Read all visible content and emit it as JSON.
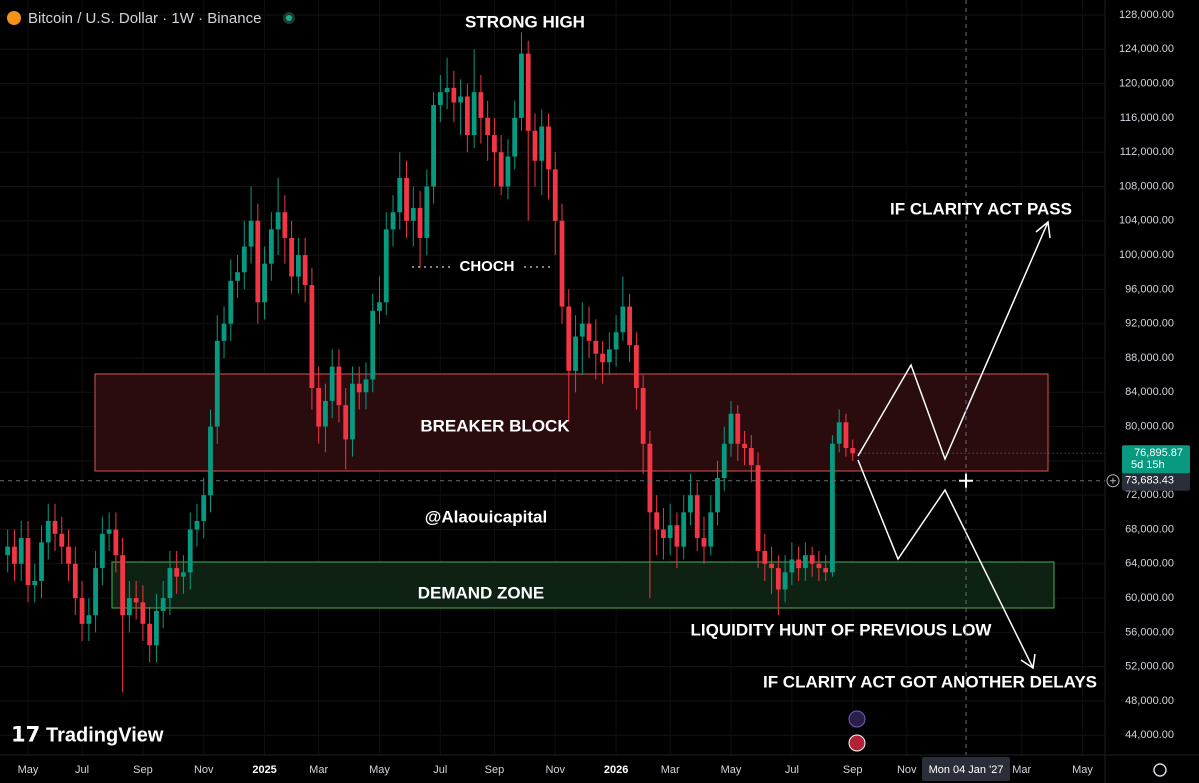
{
  "header": {
    "symbol": "Bitcoin / U.S. Dollar · 1W · Binance"
  },
  "branding": "TradingView",
  "chart_data": {
    "type": "candlestick",
    "categories": [
      null,
      null,
      null,
      "May",
      null,
      null,
      null,
      null,
      null,
      null,
      null,
      "Jul",
      null,
      null,
      null,
      null,
      null,
      null,
      null,
      null,
      "Sep",
      null,
      null,
      null,
      null,
      null,
      null,
      null,
      null,
      "Nov",
      null,
      null,
      null,
      null,
      null,
      null,
      null,
      null,
      "2025",
      null,
      null,
      null,
      null,
      null,
      null,
      null,
      "Mar",
      null,
      null,
      null,
      null,
      null,
      null,
      null,
      null,
      "May",
      null,
      null,
      null,
      null,
      null,
      null,
      null,
      null,
      "Jul",
      null,
      null,
      null,
      null,
      null,
      null,
      null,
      "Sep",
      null,
      null,
      null,
      null,
      null,
      null,
      null,
      null,
      "Nov",
      null,
      null,
      null,
      null,
      null,
      null,
      null,
      null,
      "2026",
      null,
      null,
      null,
      null,
      null,
      null,
      null,
      "Mar",
      null,
      null,
      null,
      null,
      null,
      null,
      null,
      null,
      "May",
      null,
      null,
      null,
      null,
      null,
      null,
      null,
      null,
      "Jul",
      null,
      null,
      null,
      null,
      null,
      null,
      null,
      null,
      "Sep",
      null,
      null,
      null,
      null,
      null,
      null,
      null,
      "Nov",
      null,
      null,
      null,
      null,
      null,
      null,
      null,
      null,
      null,
      null,
      null,
      null,
      null,
      null,
      null,
      null,
      "Mar",
      null,
      null,
      null,
      null,
      null,
      null,
      null,
      null,
      "May"
    ],
    "open": [
      65000,
      66000,
      64000,
      67000,
      61500,
      62000,
      66500,
      69000,
      67500,
      66000,
      64000,
      60000,
      57000,
      58000,
      63500,
      67500,
      68000,
      65000,
      58000,
      60000,
      59500,
      57000,
      54500,
      58500,
      60000,
      63500,
      62500,
      63000,
      68000,
      69000,
      72000,
      80000,
      90000,
      92000,
      97000,
      98000,
      101000,
      104000,
      94500,
      99000,
      103000,
      105000,
      102000,
      97500,
      100000,
      96500,
      84500,
      80000,
      83000,
      87000,
      82500,
      78500,
      85000,
      84000,
      85500,
      93500,
      94500,
      103000,
      105000,
      109000,
      104000,
      105500,
      102000,
      108000,
      117500,
      119000,
      119500,
      117800,
      118500,
      114000,
      119000,
      116000,
      114000,
      112000,
      108000,
      111500,
      116000,
      123500,
      114500,
      111000,
      115000,
      110000,
      104000,
      94000,
      86500,
      90500,
      92000,
      90000,
      88500,
      87500,
      89000,
      91000,
      94000,
      89500,
      84500,
      78000,
      70000,
      68000,
      67000,
      68500,
      66000,
      70000,
      72000,
      67000,
      66000,
      70000,
      74000,
      78000,
      81500,
      78000,
      77500,
      75500,
      65500,
      64000,
      63500,
      61000,
      63000,
      64500,
      63500,
      65000,
      64000,
      63500,
      63000,
      78000,
      80500,
      77500,
      null,
      null,
      null,
      null,
      null,
      null,
      null,
      null,
      null,
      null,
      null,
      null,
      null,
      null,
      null,
      null,
      null,
      null,
      null,
      null,
      null,
      null,
      null,
      null,
      null,
      null,
      null,
      null,
      null,
      null,
      null,
      null,
      null,
      null
    ],
    "high": [
      68000,
      68000,
      69000,
      69000,
      64000,
      68500,
      71000,
      71000,
      69500,
      68000,
      66000,
      62000,
      60000,
      65500,
      69500,
      70000,
      70000,
      67000,
      62000,
      62000,
      61500,
      59000,
      60500,
      62000,
      65500,
      65500,
      65000,
      70000,
      71000,
      74000,
      82000,
      93000,
      94000,
      99500,
      100000,
      104000,
      108000,
      106000,
      101000,
      105000,
      109000,
      107000,
      104000,
      102000,
      102000,
      98500,
      87000,
      85000,
      89000,
      89000,
      84500,
      87000,
      87000,
      87500,
      95500,
      97500,
      105000,
      107000,
      112000,
      111000,
      108000,
      107500,
      110000,
      119000,
      121000,
      123000,
      121500,
      120500,
      120000,
      124000,
      121000,
      118000,
      116000,
      114000,
      113500,
      118000,
      126000,
      125000,
      116500,
      117000,
      116500,
      112000,
      106000,
      96000,
      93000,
      94500,
      94000,
      92500,
      90000,
      91000,
      93000,
      97500,
      95500,
      91000,
      86000,
      79500,
      72000,
      70500,
      71000,
      70000,
      72000,
      74500,
      73500,
      69500,
      72000,
      76000,
      80000,
      83000,
      82500,
      79500,
      79000,
      77000,
      67500,
      66000,
      65000,
      65000,
      66500,
      66000,
      66500,
      66000,
      65500,
      65000,
      79000,
      82000,
      81500,
      78500,
      null,
      null,
      null,
      null,
      null,
      null,
      null,
      null,
      null,
      null,
      null,
      null,
      null,
      null,
      null,
      null,
      null,
      null,
      null,
      null,
      null,
      null,
      null,
      null,
      null,
      null,
      null,
      null,
      null,
      null,
      null,
      null,
      null,
      null
    ],
    "low": [
      63000,
      62000,
      62000,
      59500,
      59500,
      60000,
      64500,
      65500,
      64000,
      62000,
      58000,
      55000,
      55000,
      56000,
      61500,
      65500,
      63000,
      49000,
      56000,
      57500,
      55000,
      52500,
      52500,
      56500,
      58000,
      60500,
      60500,
      61000,
      66000,
      67000,
      70000,
      78000,
      88000,
      90000,
      95000,
      96000,
      99000,
      92000,
      92500,
      97000,
      100000,
      99000,
      95500,
      95500,
      94500,
      82000,
      78000,
      77000,
      81000,
      80500,
      75000,
      76500,
      82000,
      82000,
      84000,
      92000,
      93000,
      101000,
      103000,
      102000,
      101000,
      98500,
      100000,
      106000,
      115500,
      117000,
      115500,
      114000,
      112000,
      112500,
      113000,
      111000,
      108000,
      107000,
      106500,
      110000,
      114500,
      104000,
      108000,
      107000,
      106500,
      100000,
      92000,
      80500,
      84000,
      86000,
      88000,
      85500,
      85000,
      86000,
      87000,
      90000,
      87500,
      82000,
      74500,
      60000,
      65000,
      64500,
      65000,
      63500,
      64500,
      68500,
      65500,
      64000,
      65000,
      68500,
      72500,
      76500,
      76000,
      75500,
      73500,
      63500,
      62000,
      60500,
      58000,
      59500,
      61500,
      62000,
      62000,
      62500,
      62000,
      62000,
      62500,
      77000,
      76500,
      76000,
      null,
      null,
      null,
      null,
      null,
      null,
      null,
      null,
      null,
      null,
      null,
      null,
      null,
      null,
      null,
      null,
      null,
      null,
      null,
      null,
      null,
      null,
      null,
      null,
      null,
      null,
      null,
      null,
      null,
      null,
      null,
      null,
      null,
      null
    ],
    "close": [
      66000,
      64000,
      67000,
      61500,
      62000,
      66500,
      69000,
      67500,
      66000,
      64000,
      60000,
      57000,
      58000,
      63500,
      67500,
      68000,
      65000,
      58000,
      60000,
      59500,
      57000,
      54500,
      58500,
      60000,
      63500,
      62500,
      63000,
      68000,
      69000,
      72000,
      80000,
      90000,
      92000,
      97000,
      98000,
      101000,
      104000,
      94500,
      99000,
      103000,
      105000,
      102000,
      97500,
      100000,
      96500,
      84500,
      80000,
      83000,
      87000,
      82500,
      78500,
      85000,
      84000,
      85500,
      93500,
      94500,
      103000,
      105000,
      109000,
      104000,
      105500,
      102000,
      108000,
      117500,
      119000,
      119500,
      117800,
      118500,
      114000,
      119000,
      116000,
      114000,
      112000,
      108000,
      111500,
      116000,
      123500,
      114500,
      111000,
      115000,
      110000,
      104000,
      94000,
      86500,
      90500,
      92000,
      90000,
      88500,
      87500,
      89000,
      91000,
      94000,
      89500,
      84500,
      78000,
      70000,
      68000,
      67000,
      68500,
      66000,
      70000,
      72000,
      67000,
      66000,
      70000,
      74000,
      78000,
      81500,
      78000,
      77500,
      75500,
      65500,
      64000,
      63500,
      61000,
      63000,
      64500,
      63500,
      65000,
      64000,
      63500,
      63000,
      78000,
      80500,
      77500,
      76895.87,
      null,
      null,
      null,
      null,
      null,
      null,
      null,
      null,
      null,
      null,
      null,
      null,
      null,
      null,
      null,
      null,
      null,
      null,
      null,
      null,
      null,
      null,
      null,
      null,
      null,
      null,
      null,
      null,
      null,
      null,
      null,
      null,
      null,
      null
    ],
    "up_color": "#089981",
    "down_color": "#f23645",
    "ylim": [
      41700,
      129750
    ],
    "yticks": [
      {
        "value": 44000,
        "label": "44,000.00"
      },
      {
        "value": 48000,
        "label": "48,000.00"
      },
      {
        "value": 52000,
        "label": "52,000.00"
      },
      {
        "value": 56000,
        "label": "56,000.00"
      },
      {
        "value": 60000,
        "label": "60,000.00"
      },
      {
        "value": 64000,
        "label": "64,000.00"
      },
      {
        "value": 68000,
        "label": "68,000.00"
      },
      {
        "value": 72000,
        "label": "72,000.00"
      },
      {
        "value": 76000,
        "label": "76,000.00"
      },
      {
        "value": 80000,
        "label": "80,000.00"
      },
      {
        "value": 84000,
        "label": "84,000.00"
      },
      {
        "value": 88000,
        "label": "88,000.00"
      },
      {
        "value": 92000,
        "label": "92,000.00"
      },
      {
        "value": 96000,
        "label": "96,000.00"
      },
      {
        "value": 100000,
        "label": "100,000.00"
      },
      {
        "value": 104000,
        "label": "104,000.00"
      },
      {
        "value": 108000,
        "label": "108,000.00"
      },
      {
        "value": 112000,
        "label": "112,000.00"
      },
      {
        "value": 116000,
        "label": "116,000.00"
      },
      {
        "value": 120000,
        "label": "120,000.00"
      },
      {
        "value": 124000,
        "label": "124,000.00"
      },
      {
        "value": 128000,
        "label": "128,000.00"
      }
    ],
    "grid": true,
    "annotations": [
      "STRONG HIGH",
      "CHOCH",
      "BREAKER BLOCK",
      "DEMAND ZONE",
      "LIQUIDITY HUNT OF PREVIOUS LOW",
      "IF CLARITY ACT PASS",
      "IF CLARITY ACT GOT ANOTHER DELAYS"
    ],
    "watermark": "@Alaouicapital",
    "last_price": {
      "value": 76895.87,
      "label": "76,895.87"
    },
    "countdown": "5d 15h",
    "crosshair": {
      "price": 73683.43,
      "price_label": "73,683.43",
      "date_label": "Mon 04 Jan '27"
    }
  }
}
